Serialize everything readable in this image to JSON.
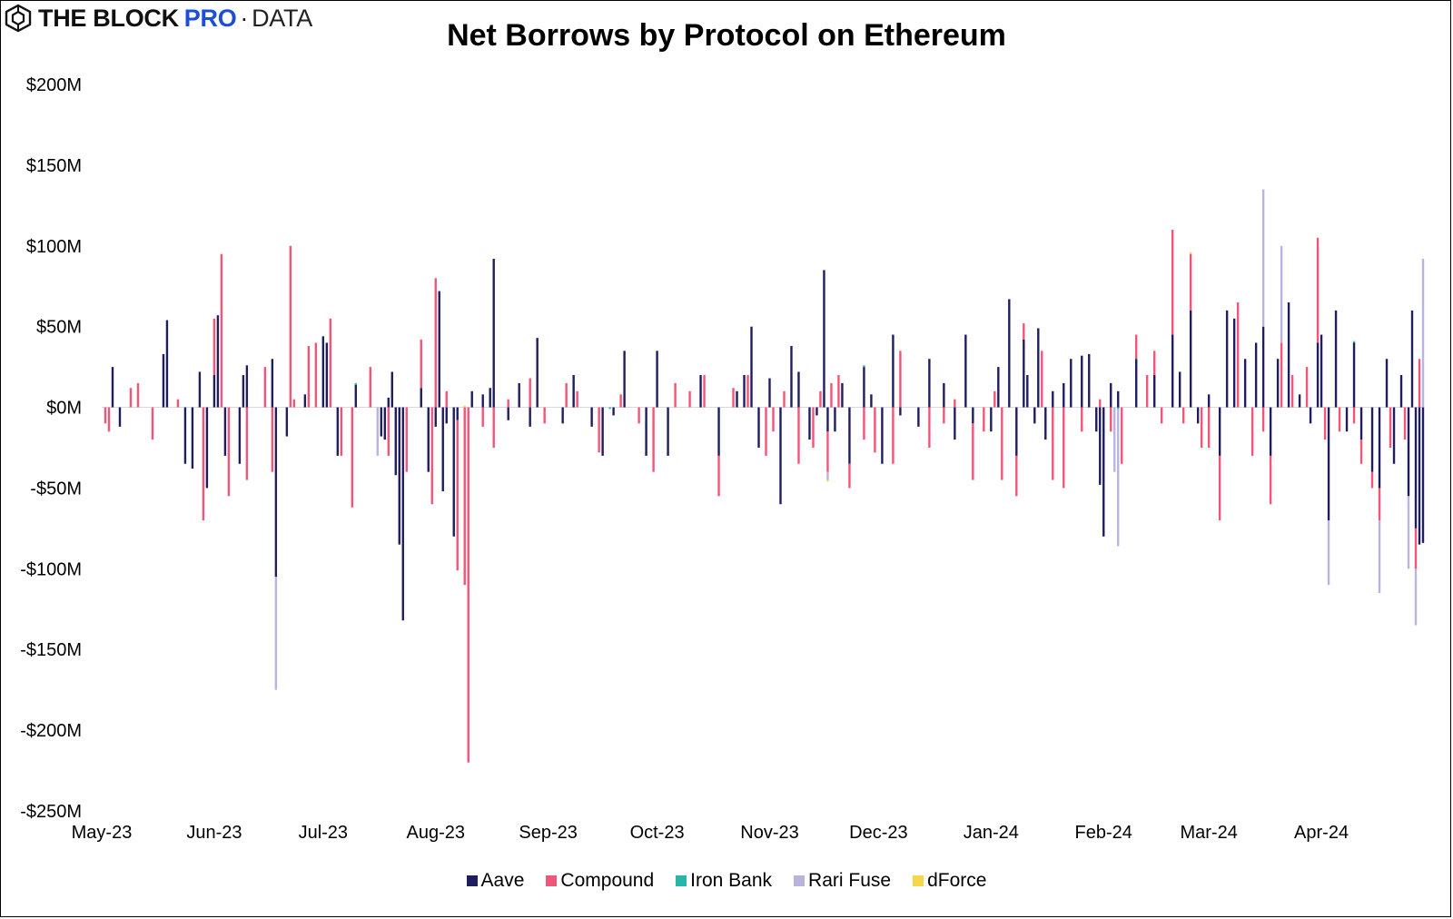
{
  "brand": {
    "block": "THE BLOCK",
    "pro": "PRO",
    "dot": "·",
    "data": "DATA"
  },
  "chart_data": {
    "type": "bar",
    "stacked": true,
    "title": "Net Borrows by Protocol on Ethereum",
    "xlabel": "",
    "ylabel": "",
    "ylim": [
      -250,
      200
    ],
    "yticks": [
      200,
      150,
      100,
      50,
      0,
      -50,
      -100,
      -150,
      -200,
      -250
    ],
    "ytick_labels": [
      "$200M",
      "$150M",
      "$100M",
      "$50M",
      "$0M",
      "-$50M",
      "-$100M",
      "-$150M",
      "-$200M",
      "-$250M"
    ],
    "xtick_labels": [
      "May-23",
      "Jun-23",
      "Jul-23",
      "Aug-23",
      "Sep-23",
      "Oct-23",
      "Nov-23",
      "Dec-23",
      "Jan-24",
      "Feb-24",
      "Mar-24",
      "Apr-24"
    ],
    "xtick_day_index": [
      0,
      31,
      61,
      92,
      123,
      153,
      184,
      214,
      245,
      276,
      305,
      336
    ],
    "days": 365,
    "grid": false,
    "legend_position": "bottom-center",
    "colors": {
      "Aave": "#1f1d5c",
      "Compound": "#f0557a",
      "Iron Bank": "#2bb5a8",
      "Rari Fuse": "#b8b4dd",
      "dForce": "#f5d84a"
    },
    "series": [
      {
        "name": "Aave",
        "note": "Selected daily values in $M (day index from May 1, 2023); unlisted days are small noise",
        "points": [
          [
            3,
            25
          ],
          [
            5,
            -12
          ],
          [
            17,
            33
          ],
          [
            18,
            54
          ],
          [
            23,
            -35
          ],
          [
            25,
            -38
          ],
          [
            27,
            22
          ],
          [
            29,
            -50
          ],
          [
            31,
            20
          ],
          [
            32,
            57
          ],
          [
            34,
            -30
          ],
          [
            38,
            -35
          ],
          [
            39,
            20
          ],
          [
            40,
            26
          ],
          [
            47,
            30
          ],
          [
            48,
            -105
          ],
          [
            51,
            -18
          ],
          [
            56,
            8
          ],
          [
            61,
            44
          ],
          [
            62,
            40
          ],
          [
            65,
            -30
          ],
          [
            70,
            14
          ],
          [
            77,
            -18
          ],
          [
            78,
            -20
          ],
          [
            79,
            6
          ],
          [
            80,
            22
          ],
          [
            81,
            -42
          ],
          [
            82,
            -85
          ],
          [
            83,
            -132
          ],
          [
            88,
            12
          ],
          [
            90,
            -40
          ],
          [
            92,
            -12
          ],
          [
            93,
            72
          ],
          [
            94,
            -52
          ],
          [
            95,
            -10
          ],
          [
            97,
            -80
          ],
          [
            98,
            -8
          ],
          [
            102,
            10
          ],
          [
            105,
            8
          ],
          [
            107,
            12
          ],
          [
            108,
            92
          ],
          [
            112,
            -8
          ],
          [
            115,
            15
          ],
          [
            118,
            -12
          ],
          [
            120,
            43
          ],
          [
            127,
            -10
          ],
          [
            130,
            20
          ],
          [
            135,
            -12
          ],
          [
            138,
            -30
          ],
          [
            141,
            -5
          ],
          [
            144,
            35
          ],
          [
            150,
            -30
          ],
          [
            153,
            35
          ],
          [
            156,
            -30
          ],
          [
            165,
            20
          ],
          [
            170,
            -30
          ],
          [
            175,
            10
          ],
          [
            177,
            20
          ],
          [
            179,
            50
          ],
          [
            181,
            -25
          ],
          [
            184,
            18
          ],
          [
            187,
            -60
          ],
          [
            190,
            38
          ],
          [
            192,
            22
          ],
          [
            195,
            -20
          ],
          [
            197,
            -5
          ],
          [
            199,
            85
          ],
          [
            200,
            -15
          ],
          [
            202,
            -15
          ],
          [
            204,
            15
          ],
          [
            206,
            -35
          ],
          [
            210,
            25
          ],
          [
            212,
            8
          ],
          [
            215,
            -35
          ],
          [
            218,
            45
          ],
          [
            220,
            -5
          ],
          [
            225,
            -12
          ],
          [
            228,
            30
          ],
          [
            232,
            15
          ],
          [
            235,
            -20
          ],
          [
            238,
            45
          ],
          [
            240,
            -10
          ],
          [
            245,
            -15
          ],
          [
            247,
            25
          ],
          [
            250,
            67
          ],
          [
            252,
            -30
          ],
          [
            254,
            42
          ],
          [
            255,
            20
          ],
          [
            257,
            -10
          ],
          [
            258,
            49
          ],
          [
            260,
            -20
          ],
          [
            262,
            10
          ],
          [
            265,
            15
          ],
          [
            267,
            30
          ],
          [
            270,
            32
          ],
          [
            272,
            33
          ],
          [
            274,
            -15
          ],
          [
            275,
            -48
          ],
          [
            276,
            -80
          ],
          [
            278,
            15
          ],
          [
            280,
            10
          ],
          [
            285,
            30
          ],
          [
            290,
            20
          ],
          [
            295,
            45
          ],
          [
            297,
            22
          ],
          [
            300,
            60
          ],
          [
            302,
            -10
          ],
          [
            305,
            8
          ],
          [
            308,
            -30
          ],
          [
            310,
            60
          ],
          [
            312,
            55
          ],
          [
            315,
            30
          ],
          [
            318,
            40
          ],
          [
            320,
            50
          ],
          [
            322,
            -30
          ],
          [
            324,
            30
          ],
          [
            327,
            65
          ],
          [
            330,
            8
          ],
          [
            333,
            -10
          ],
          [
            335,
            40
          ],
          [
            336,
            45
          ],
          [
            338,
            -70
          ],
          [
            340,
            60
          ],
          [
            343,
            -15
          ],
          [
            345,
            40
          ],
          [
            347,
            -20
          ],
          [
            350,
            -40
          ],
          [
            352,
            -50
          ],
          [
            354,
            30
          ],
          [
            356,
            -35
          ],
          [
            358,
            20
          ],
          [
            360,
            -55
          ],
          [
            361,
            60
          ],
          [
            362,
            -75
          ],
          [
            363,
            -85
          ],
          [
            364,
            -84
          ]
        ]
      },
      {
        "name": "Compound",
        "note": "Selected daily values in $M",
        "points": [
          [
            1,
            -10
          ],
          [
            2,
            -15
          ],
          [
            8,
            12
          ],
          [
            10,
            15
          ],
          [
            14,
            -20
          ],
          [
            21,
            5
          ],
          [
            28,
            -70
          ],
          [
            31,
            35
          ],
          [
            33,
            95
          ],
          [
            35,
            -55
          ],
          [
            40,
            -45
          ],
          [
            45,
            25
          ],
          [
            47,
            -40
          ],
          [
            52,
            100
          ],
          [
            53,
            5
          ],
          [
            57,
            38
          ],
          [
            59,
            40
          ],
          [
            63,
            55
          ],
          [
            66,
            -30
          ],
          [
            69,
            -62
          ],
          [
            74,
            25
          ],
          [
            79,
            -30
          ],
          [
            84,
            -40
          ],
          [
            88,
            30
          ],
          [
            91,
            -60
          ],
          [
            92,
            80
          ],
          [
            95,
            10
          ],
          [
            98,
            -93
          ],
          [
            100,
            -110
          ],
          [
            101,
            -220
          ],
          [
            105,
            -12
          ],
          [
            108,
            -25
          ],
          [
            112,
            5
          ],
          [
            118,
            18
          ],
          [
            122,
            -10
          ],
          [
            128,
            15
          ],
          [
            131,
            10
          ],
          [
            137,
            -28
          ],
          [
            143,
            8
          ],
          [
            148,
            -10
          ],
          [
            152,
            -40
          ],
          [
            158,
            15
          ],
          [
            162,
            10
          ],
          [
            166,
            20
          ],
          [
            170,
            -25
          ],
          [
            174,
            12
          ],
          [
            178,
            20
          ],
          [
            183,
            -30
          ],
          [
            185,
            -15
          ],
          [
            188,
            10
          ],
          [
            192,
            -35
          ],
          [
            196,
            -25
          ],
          [
            198,
            10
          ],
          [
            200,
            -25
          ],
          [
            201,
            15
          ],
          [
            203,
            20
          ],
          [
            206,
            -15
          ],
          [
            210,
            -20
          ],
          [
            213,
            -28
          ],
          [
            218,
            -35
          ],
          [
            220,
            35
          ],
          [
            228,
            -25
          ],
          [
            232,
            -10
          ],
          [
            235,
            5
          ],
          [
            240,
            -35
          ],
          [
            243,
            -15
          ],
          [
            246,
            10
          ],
          [
            248,
            -45
          ],
          [
            252,
            -25
          ],
          [
            254,
            10
          ],
          [
            259,
            35
          ],
          [
            262,
            -45
          ],
          [
            265,
            -50
          ],
          [
            270,
            -15
          ],
          [
            275,
            5
          ],
          [
            278,
            -15
          ],
          [
            281,
            -35
          ],
          [
            285,
            15
          ],
          [
            288,
            20
          ],
          [
            290,
            15
          ],
          [
            292,
            -10
          ],
          [
            295,
            65
          ],
          [
            298,
            -10
          ],
          [
            300,
            35
          ],
          [
            303,
            -25
          ],
          [
            305,
            -25
          ],
          [
            308,
            -40
          ],
          [
            313,
            65
          ],
          [
            317,
            -30
          ],
          [
            320,
            -15
          ],
          [
            322,
            -30
          ],
          [
            325,
            40
          ],
          [
            328,
            20
          ],
          [
            332,
            25
          ],
          [
            335,
            65
          ],
          [
            337,
            -20
          ],
          [
            341,
            -15
          ],
          [
            345,
            -10
          ],
          [
            347,
            -15
          ],
          [
            350,
            -10
          ],
          [
            352,
            -20
          ],
          [
            355,
            -25
          ],
          [
            359,
            -20
          ],
          [
            362,
            -25
          ],
          [
            363,
            30
          ]
        ]
      },
      {
        "name": "Iron Bank",
        "note": "Negligible daily values in $M",
        "points": [
          [
            70,
            1
          ],
          [
            140,
            -1
          ],
          [
            210,
            1
          ],
          [
            280,
            -1
          ],
          [
            345,
            1
          ]
        ]
      },
      {
        "name": "Rari Fuse",
        "note": "Daily values in $M",
        "points": [
          [
            48,
            -70
          ],
          [
            76,
            -30
          ],
          [
            200,
            -5
          ],
          [
            279,
            -40
          ],
          [
            280,
            -85
          ],
          [
            320,
            85
          ],
          [
            325,
            60
          ],
          [
            338,
            -40
          ],
          [
            352,
            -45
          ],
          [
            360,
            -45
          ],
          [
            362,
            -35
          ],
          [
            364,
            92
          ]
        ]
      },
      {
        "name": "dForce",
        "note": "Negligible daily values in $M",
        "points": [
          [
            100,
            1
          ],
          [
            200,
            -1
          ],
          [
            300,
            1
          ]
        ]
      }
    ]
  }
}
